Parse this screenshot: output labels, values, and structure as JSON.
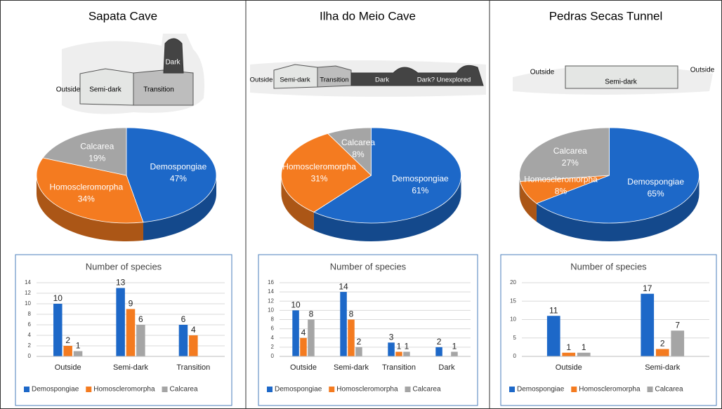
{
  "chart_data": [
    {
      "type": "pie",
      "title": "Sapata Cave",
      "categories": [
        "Demospongiae",
        "Homoscleromorpha",
        "Calcarea"
      ],
      "values": [
        47,
        34,
        19
      ],
      "value_labels": [
        "47%",
        "34%",
        "19%"
      ],
      "colors": [
        "#1d68c8",
        "#f47b20",
        "#a5a5a5"
      ]
    },
    {
      "type": "bar",
      "title": "Number of species",
      "categories": [
        "Outside",
        "Semi-dark",
        "Transition"
      ],
      "series": [
        {
          "name": "Demospongiae",
          "color": "#1d68c8",
          "values": [
            10,
            13,
            6
          ]
        },
        {
          "name": "Homoscleromorpha",
          "color": "#f47b20",
          "values": [
            2,
            9,
            4
          ]
        },
        {
          "name": "Calcarea",
          "color": "#a5a5a5",
          "values": [
            1,
            6,
            null
          ]
        }
      ],
      "ylim": [
        0,
        14
      ],
      "yticks": [
        0,
        2,
        4,
        6,
        8,
        10,
        12,
        14
      ],
      "grid": true,
      "legend": "bottom"
    },
    {
      "type": "pie",
      "title": "Ilha do Meio Cave",
      "categories": [
        "Demospongiae",
        "Homoscleromorpha",
        "Calcarea"
      ],
      "values": [
        61,
        31,
        8
      ],
      "value_labels": [
        "61%",
        "31%",
        "8%"
      ],
      "colors": [
        "#1d68c8",
        "#f47b20",
        "#a5a5a5"
      ]
    },
    {
      "type": "bar",
      "title": "Number of species",
      "categories": [
        "Outside",
        "Semi-dark",
        "Transition",
        "Dark"
      ],
      "series": [
        {
          "name": "Demospongiae",
          "color": "#1d68c8",
          "values": [
            10,
            14,
            3,
            2
          ]
        },
        {
          "name": "Homoscleromorpha",
          "color": "#f47b20",
          "values": [
            4,
            8,
            1,
            null
          ]
        },
        {
          "name": "Calcarea",
          "color": "#a5a5a5",
          "values": [
            8,
            2,
            1,
            1
          ]
        }
      ],
      "ylim": [
        0,
        16
      ],
      "yticks": [
        0,
        2,
        4,
        6,
        8,
        10,
        12,
        14,
        16
      ],
      "grid": true,
      "legend": "bottom"
    },
    {
      "type": "pie",
      "title": "Pedras Secas Tunnel",
      "categories": [
        "Demospongiae",
        "Homoscleromorpha",
        "Calcarea"
      ],
      "values": [
        65,
        8,
        27
      ],
      "value_labels": [
        "65%",
        "8%",
        "27%"
      ],
      "colors": [
        "#1d68c8",
        "#f47b20",
        "#a5a5a5"
      ]
    },
    {
      "type": "bar",
      "title": "Number of species",
      "categories": [
        "Outside",
        "Semi-dark"
      ],
      "series": [
        {
          "name": "Demospongiae",
          "color": "#1d68c8",
          "values": [
            11,
            17
          ]
        },
        {
          "name": "Homoscleromorpha",
          "color": "#f47b20",
          "values": [
            1,
            2
          ]
        },
        {
          "name": "Calcarea",
          "color": "#a5a5a5",
          "values": [
            1,
            7
          ]
        }
      ],
      "ylim": [
        0,
        20
      ],
      "yticks": [
        0,
        5,
        10,
        15,
        20
      ],
      "grid": true,
      "legend": "bottom"
    }
  ],
  "diagrams": [
    {
      "labels": [
        "Outside",
        "Semi-dark",
        "Transition",
        "Dark"
      ]
    },
    {
      "labels": [
        "Outside",
        "Semi-dark",
        "Transition",
        "Dark",
        "Dark? Unexplored"
      ]
    },
    {
      "labels": [
        "Outside",
        "Semi-dark",
        "Outside"
      ]
    }
  ]
}
